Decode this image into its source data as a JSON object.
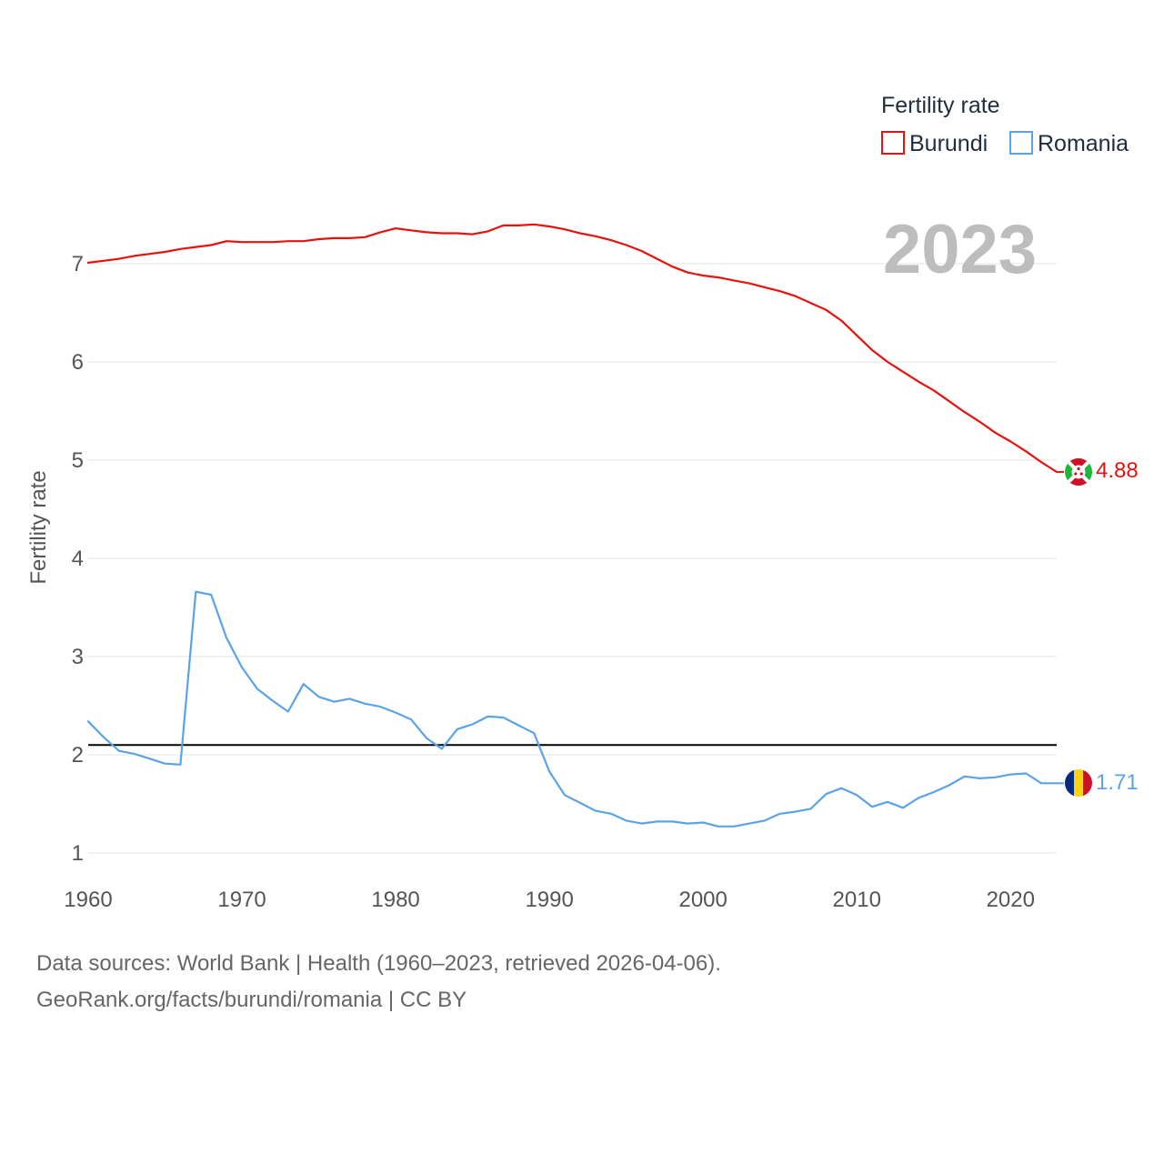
{
  "chart_data": {
    "type": "line",
    "title": "Fertility rate",
    "xlabel": "",
    "ylabel": "Fertility rate",
    "xlim": [
      1960,
      2023
    ],
    "ylim": [
      0.85,
      7.7
    ],
    "x_ticks": [
      1960,
      1970,
      1980,
      1990,
      2000,
      2010,
      2020
    ],
    "y_ticks": [
      1,
      2,
      3,
      4,
      5,
      6,
      7
    ],
    "year_label": "2023",
    "reference_line": {
      "value": 2.1,
      "color": "#000000"
    },
    "legend": {
      "title": "Fertility rate",
      "position": "top-right"
    },
    "series": [
      {
        "name": "Burundi",
        "color": "#e8120c",
        "end_label": "4.88",
        "x": [
          1960,
          1961,
          1962,
          1963,
          1964,
          1965,
          1966,
          1967,
          1968,
          1969,
          1970,
          1971,
          1972,
          1973,
          1974,
          1975,
          1976,
          1977,
          1978,
          1979,
          1980,
          1981,
          1982,
          1983,
          1984,
          1985,
          1986,
          1987,
          1988,
          1989,
          1990,
          1991,
          1992,
          1993,
          1994,
          1995,
          1996,
          1997,
          1998,
          1999,
          2000,
          2001,
          2002,
          2003,
          2004,
          2005,
          2006,
          2007,
          2008,
          2009,
          2010,
          2011,
          2012,
          2013,
          2014,
          2015,
          2016,
          2017,
          2018,
          2019,
          2020,
          2021,
          2022,
          2023
        ],
        "values": [
          7.01,
          7.03,
          7.05,
          7.08,
          7.1,
          7.12,
          7.15,
          7.17,
          7.19,
          7.23,
          7.22,
          7.22,
          7.22,
          7.23,
          7.23,
          7.25,
          7.26,
          7.26,
          7.27,
          7.32,
          7.36,
          7.34,
          7.32,
          7.31,
          7.31,
          7.3,
          7.33,
          7.39,
          7.39,
          7.4,
          7.38,
          7.35,
          7.31,
          7.28,
          7.24,
          7.19,
          7.13,
          7.05,
          6.97,
          6.91,
          6.88,
          6.86,
          6.83,
          6.8,
          6.76,
          6.72,
          6.67,
          6.6,
          6.53,
          6.42,
          6.27,
          6.12,
          6.0,
          5.9,
          5.8,
          5.71,
          5.6,
          5.49,
          5.39,
          5.28,
          5.19,
          5.09,
          4.98,
          4.88
        ]
      },
      {
        "name": "Romania",
        "color": "#5ba3e6",
        "end_label": "1.71",
        "x": [
          1960,
          1961,
          1962,
          1963,
          1964,
          1965,
          1966,
          1967,
          1968,
          1969,
          1970,
          1971,
          1972,
          1973,
          1974,
          1975,
          1976,
          1977,
          1978,
          1979,
          1980,
          1981,
          1982,
          1983,
          1984,
          1985,
          1986,
          1987,
          1988,
          1989,
          1990,
          1991,
          1992,
          1993,
          1994,
          1995,
          1996,
          1997,
          1998,
          1999,
          2000,
          2001,
          2002,
          2003,
          2004,
          2005,
          2006,
          2007,
          2008,
          2009,
          2010,
          2011,
          2012,
          2013,
          2014,
          2015,
          2016,
          2017,
          2018,
          2019,
          2020,
          2021,
          2022,
          2023
        ],
        "values": [
          2.34,
          2.18,
          2.04,
          2.01,
          1.96,
          1.91,
          1.9,
          3.66,
          3.63,
          3.19,
          2.89,
          2.67,
          2.55,
          2.44,
          2.72,
          2.59,
          2.54,
          2.57,
          2.52,
          2.49,
          2.43,
          2.36,
          2.17,
          2.06,
          2.26,
          2.31,
          2.39,
          2.38,
          2.3,
          2.22,
          1.83,
          1.59,
          1.51,
          1.43,
          1.4,
          1.33,
          1.3,
          1.32,
          1.32,
          1.3,
          1.31,
          1.27,
          1.27,
          1.3,
          1.33,
          1.4,
          1.42,
          1.45,
          1.6,
          1.66,
          1.59,
          1.47,
          1.52,
          1.46,
          1.56,
          1.62,
          1.69,
          1.78,
          1.76,
          1.77,
          1.8,
          1.81,
          1.71,
          1.71
        ]
      }
    ]
  },
  "footer": {
    "line1": "Data sources: World Bank | Health (1960–2023, retrieved 2026-04-06).",
    "line2": "GeoRank.org/facts/burundi/romania | CC BY"
  }
}
